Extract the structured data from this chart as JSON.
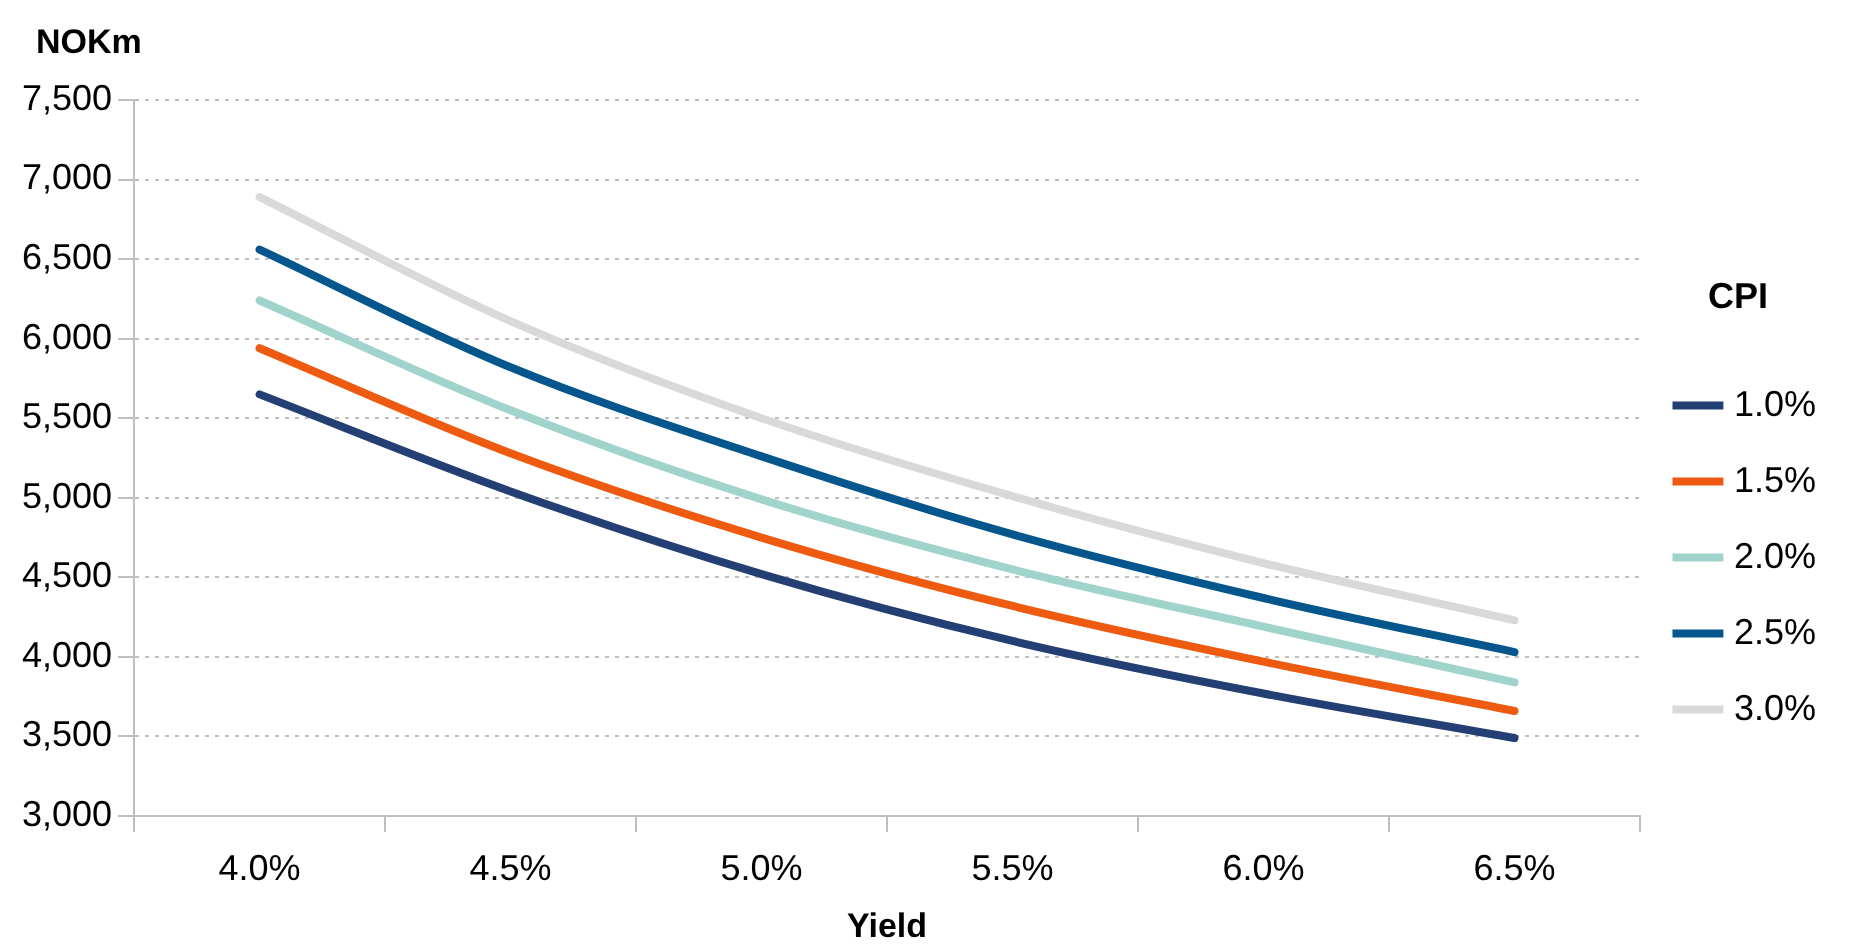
{
  "chart_data": {
    "type": "line",
    "xlabel": "Yield",
    "ylabel": "NOKm",
    "legend_title": "CPI",
    "categories": [
      "4.0%",
      "4.5%",
      "5.0%",
      "5.5%",
      "6.0%",
      "6.5%"
    ],
    "series": [
      {
        "name": "1.0%",
        "color": "#243f73",
        "values": [
          5650,
          5040,
          4520,
          4100,
          3770,
          3490
        ]
      },
      {
        "name": "1.5%",
        "color": "#ee5a0f",
        "values": [
          5940,
          5280,
          4750,
          4320,
          3970,
          3660
        ]
      },
      {
        "name": "2.0%",
        "color": "#9fd3cb",
        "values": [
          6240,
          5550,
          4990,
          4550,
          4190,
          3840
        ]
      },
      {
        "name": "2.5%",
        "color": "#04568c",
        "values": [
          6560,
          5820,
          5260,
          4770,
          4370,
          4030
        ]
      },
      {
        "name": "3.0%",
        "color": "#d9d9d9",
        "values": [
          6890,
          6110,
          5500,
          5010,
          4590,
          4230
        ]
      }
    ],
    "ylim": [
      3000,
      7500
    ],
    "yticks": [
      {
        "value": 3000,
        "label": "3,000"
      },
      {
        "value": 3500,
        "label": "3,500"
      },
      {
        "value": 4000,
        "label": "4,000"
      },
      {
        "value": 4500,
        "label": "4,500"
      },
      {
        "value": 5000,
        "label": "5,000"
      },
      {
        "value": 5500,
        "label": "5,500"
      },
      {
        "value": 6000,
        "label": "6,000"
      },
      {
        "value": 6500,
        "label": "6,500"
      },
      {
        "value": 7000,
        "label": "7,000"
      },
      {
        "value": 7500,
        "label": "7,500"
      }
    ],
    "grid": "y",
    "legend": "right",
    "marker": "none",
    "line_style": "solid"
  }
}
